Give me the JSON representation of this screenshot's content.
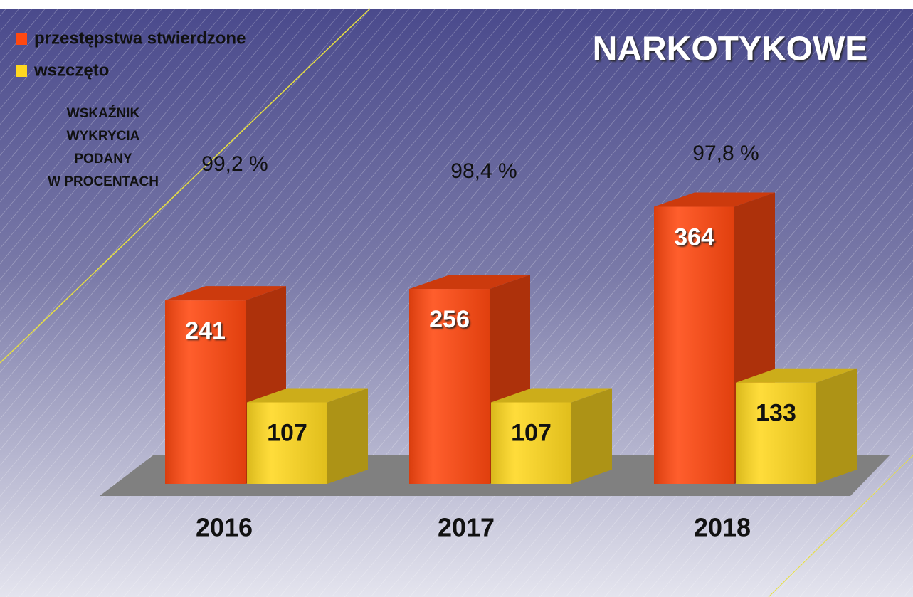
{
  "chart_data": {
    "type": "bar3d",
    "title": "NARKOTYKOWE",
    "categories": [
      "2016",
      "2017",
      "2018"
    ],
    "series": [
      {
        "name": "przestępstwa stwierdzone",
        "color": "#ff4810",
        "values": [
          241,
          256,
          364
        ]
      },
      {
        "name": "wszczęto",
        "color": "#ffd820",
        "values": [
          107,
          107,
          133
        ]
      }
    ],
    "annotation_title": [
      "WSKAŹNIK",
      "WYKRYCIA",
      "PODANY",
      "W PROCENTACH"
    ],
    "annotations": [
      "99,2 %",
      "98,4 %",
      "97,8 %"
    ],
    "legend": "top-left"
  }
}
